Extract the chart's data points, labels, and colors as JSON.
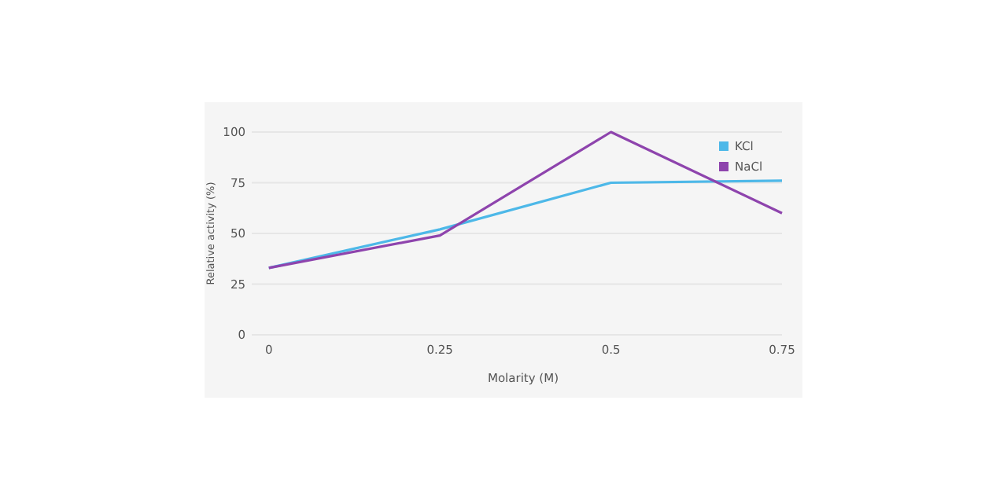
{
  "chart_data": {
    "type": "line",
    "xlabel": "Molarity (M)",
    "ylabel": "Relative activity (%)",
    "x": [
      0,
      0.25,
      0.5,
      0.75
    ],
    "xlim": [
      -0.025,
      0.75
    ],
    "xticks": [
      0,
      0.25,
      0.5,
      0.75
    ],
    "ylim": [
      0,
      100
    ],
    "yticks": [
      0,
      25,
      50,
      75,
      100
    ],
    "grid": "y",
    "legend": "top right",
    "marker": "none",
    "line_style": "solid",
    "series": [
      {
        "name": "KCl",
        "color": "#4db8e8",
        "values": [
          33,
          52,
          75,
          76
        ]
      },
      {
        "name": "NaCl",
        "color": "#8e44ad",
        "values": [
          33,
          49,
          100,
          60
        ]
      }
    ]
  }
}
